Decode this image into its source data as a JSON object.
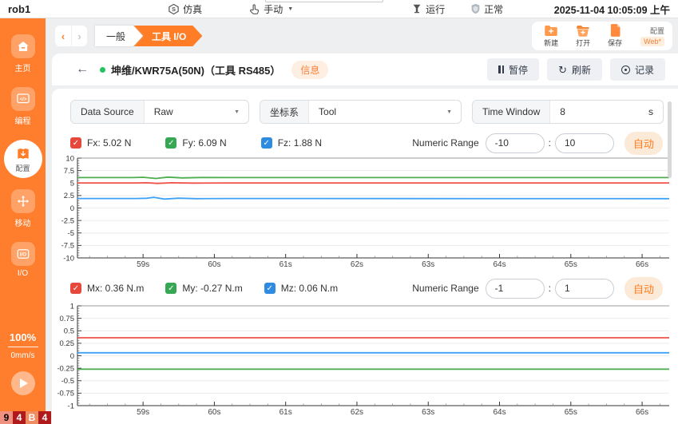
{
  "topbar": {
    "robot_name": "rob1",
    "simulation_label": "仿真",
    "mode_label": "手动",
    "run_label": "运行",
    "status_label": "正常",
    "datetime": "2025-11-04 10:05:09 上午"
  },
  "sidebar": {
    "items": [
      {
        "label": "主页",
        "active": false
      },
      {
        "label": "编程",
        "active": false
      },
      {
        "label": "配置",
        "active": true
      },
      {
        "label": "移动",
        "active": false
      },
      {
        "label": "I/O",
        "active": false
      }
    ],
    "speed_percent": "100%",
    "speed_value": "0mm/s",
    "badges": [
      {
        "text": "9",
        "bg": "#f0907f",
        "fg": "#000000"
      },
      {
        "text": "4",
        "bg": "#b11a1a",
        "fg": "#ffffff"
      },
      {
        "text": "B",
        "bg": "#ee8c62",
        "fg": "#ffffff"
      },
      {
        "text": "4",
        "bg": "#b11a1a",
        "fg": "#ffffff"
      }
    ]
  },
  "nav": {
    "back_arrow": "‹",
    "forward_arrow": "›",
    "tab_general": "一般",
    "tab_tool_io": "工具 I/O"
  },
  "file_toolbar": {
    "new_label": "新建",
    "open_label": "打开",
    "save_label": "保存",
    "config_label": "配置",
    "web_label": "Web*"
  },
  "device": {
    "title": "坤维/KWR75A(50N)（工具 RS485）",
    "info_label": "信息",
    "pause_label": "暂停",
    "refresh_label": "刷新",
    "record_label": "记录"
  },
  "controls": {
    "data_source_label": "Data Source",
    "data_source_value": "Raw",
    "frame_label": "坐标系",
    "frame_value": "Tool",
    "time_window_label": "Time Window",
    "time_window_value": "8",
    "time_window_unit": "s"
  },
  "force_panel": {
    "legend": [
      {
        "label": "Fx: 5.02 N",
        "color": "#e6493b"
      },
      {
        "label": "Fy: 6.09 N",
        "color": "#36a854"
      },
      {
        "label": "Fz: 1.88 N",
        "color": "#2f8be0"
      }
    ],
    "numeric_range_label": "Numeric Range",
    "range_min": "-10",
    "range_colon": ":",
    "range_max": "10",
    "auto_label": "自动"
  },
  "torque_panel": {
    "legend": [
      {
        "label": "Mx: 0.36 N.m",
        "color": "#e6493b"
      },
      {
        "label": "My: -0.27 N.m",
        "color": "#36a854"
      },
      {
        "label": "Mz: 0.06 N.m",
        "color": "#2f8be0"
      }
    ],
    "numeric_range_label": "Numeric Range",
    "range_min": "-1",
    "range_colon": ":",
    "range_max": "1",
    "auto_label": "自动"
  },
  "chart_data": [
    {
      "type": "line",
      "xlim": [
        58.08,
        66.38
      ],
      "ylim": [
        -10,
        10
      ],
      "yticks": [
        10,
        7.5,
        5,
        2.5,
        0,
        -2.5,
        -5,
        -7.5,
        -10
      ],
      "y_major_step": 2.5,
      "y_minor_step": 0.5,
      "xticks": [
        59,
        60,
        61,
        62,
        63,
        64,
        65,
        66
      ],
      "x_minor_step": 0.25,
      "x_tick_suffix": "s",
      "grid": true,
      "series": [
        {
          "name": "Fx",
          "color": "#f0524a",
          "points": [
            [
              58.08,
              5.02
            ],
            [
              58.9,
              5.02
            ],
            [
              59.05,
              5.06
            ],
            [
              59.2,
              4.93
            ],
            [
              59.4,
              5.05
            ],
            [
              59.7,
              5.0
            ],
            [
              60.2,
              5.02
            ],
            [
              66.38,
              5.02
            ]
          ]
        },
        {
          "name": "Fy",
          "color": "#4cae4f",
          "points": [
            [
              58.08,
              6.1
            ],
            [
              58.85,
              6.1
            ],
            [
              59.0,
              6.16
            ],
            [
              59.18,
              5.92
            ],
            [
              59.35,
              6.2
            ],
            [
              59.55,
              6.04
            ],
            [
              59.8,
              6.12
            ],
            [
              60.3,
              6.09
            ],
            [
              66.38,
              6.09
            ]
          ]
        },
        {
          "name": "Fz",
          "color": "#3fa2f7",
          "points": [
            [
              58.08,
              1.9
            ],
            [
              58.9,
              1.9
            ],
            [
              59.05,
              1.95
            ],
            [
              59.15,
              2.14
            ],
            [
              59.3,
              1.8
            ],
            [
              59.5,
              1.97
            ],
            [
              59.75,
              1.87
            ],
            [
              60.2,
              1.9
            ],
            [
              66.38,
              1.88
            ]
          ]
        }
      ]
    },
    {
      "type": "line",
      "xlim": [
        58.08,
        66.38
      ],
      "ylim": [
        -1,
        1
      ],
      "yticks": [
        1,
        0.75,
        0.5,
        0.25,
        0,
        -0.25,
        -0.5,
        -0.75,
        -1
      ],
      "y_major_step": 0.25,
      "y_minor_step": 0.05,
      "xticks": [
        59,
        60,
        61,
        62,
        63,
        64,
        65,
        66
      ],
      "x_minor_step": 0.25,
      "x_tick_suffix": "s",
      "grid": true,
      "series": [
        {
          "name": "Mx",
          "color": "#f0524a",
          "points": [
            [
              58.08,
              0.36
            ],
            [
              66.38,
              0.36
            ]
          ]
        },
        {
          "name": "My",
          "color": "#4cae4f",
          "points": [
            [
              58.08,
              -0.27
            ],
            [
              66.38,
              -0.27
            ]
          ]
        },
        {
          "name": "Mz",
          "color": "#3fa2f7",
          "points": [
            [
              58.08,
              0.06
            ],
            [
              66.38,
              0.06
            ]
          ]
        }
      ]
    }
  ]
}
